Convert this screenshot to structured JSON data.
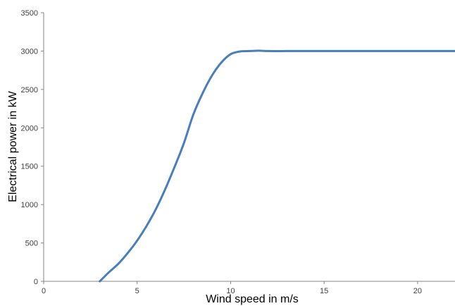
{
  "chart_data": {
    "type": "line",
    "title": "",
    "xlabel": "Wind speed  in m/s",
    "ylabel": "Electrical power  in kW",
    "xlim": [
      0,
      22
    ],
    "ylim": [
      0,
      3500
    ],
    "x_ticks": [
      0,
      5,
      10,
      15,
      20
    ],
    "y_ticks": [
      0,
      500,
      1000,
      1500,
      2000,
      2500,
      3000,
      3500
    ],
    "grid": false,
    "legend": "none",
    "series": [
      {
        "color": "#4a7ebb",
        "x": [
          3,
          3.5,
          4,
          4.5,
          5,
          5.5,
          6,
          6.5,
          7,
          7.5,
          8,
          8.5,
          9,
          9.5,
          10,
          10.5,
          11,
          11.5,
          12,
          13,
          14,
          15,
          16,
          17,
          18,
          19,
          20,
          21,
          22
        ],
        "y": [
          0,
          120,
          230,
          370,
          530,
          720,
          940,
          1200,
          1490,
          1800,
          2170,
          2450,
          2680,
          2850,
          2960,
          2995,
          3000,
          3005,
          3000,
          3000,
          3000,
          3000,
          3000,
          3000,
          3000,
          3000,
          3000,
          3000,
          3000
        ]
      }
    ]
  }
}
